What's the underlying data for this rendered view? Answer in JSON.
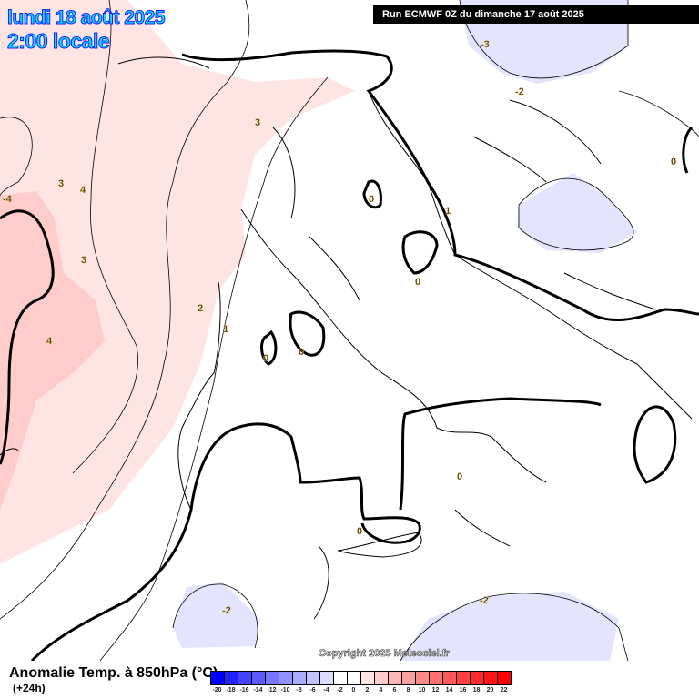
{
  "header": {
    "date": "lundi 18 août 2025",
    "time": "2:00 locale",
    "run": "Run ECMWF 0Z du dimanche 17 août 2025"
  },
  "copyright": "Copyright 2025 Meteociel.fr",
  "legend": {
    "title": "Anomalie Temp. à 850hPa (°C)",
    "subtitle": "(+24h)",
    "ticks": [
      "-20",
      "-18",
      "-16",
      "-14",
      "-12",
      "-10",
      "-8",
      "-6",
      "-4",
      "-2",
      "0",
      "2",
      "4",
      "6",
      "8",
      "10",
      "12",
      "14",
      "16",
      "18",
      "20",
      "22"
    ],
    "colors": [
      "#0000ff",
      "#2222ff",
      "#4444ff",
      "#5b5bff",
      "#7777ff",
      "#9292ff",
      "#aaaaff",
      "#c2c2ff",
      "#dcdcff",
      "#ffffff",
      "#ffffff",
      "#ffe4e4",
      "#ffcccc",
      "#ffb6b6",
      "#ffa0a0",
      "#ff8888",
      "#ff7070",
      "#ff5858",
      "#ff4040",
      "#ff2a2a",
      "#ff1515",
      "#ff0000"
    ]
  },
  "contour_labels": {
    "l1": "3",
    "l2": "4",
    "l3": "-4",
    "l4": "3",
    "l5": "3",
    "l6": "4",
    "l7": "-3",
    "l8": "-2",
    "l9": "0",
    "l10": "0",
    "l11": "1",
    "l12": "0",
    "l13": "2",
    "l14": "1",
    "l15": "0",
    "l16": "0",
    "l17": "0",
    "l18": "0",
    "l19": "-2",
    "l20": "-2"
  },
  "colors": {
    "warm_light": "#ffe4e4",
    "warm": "#ffcccc",
    "cool": "#e4e4ff"
  }
}
